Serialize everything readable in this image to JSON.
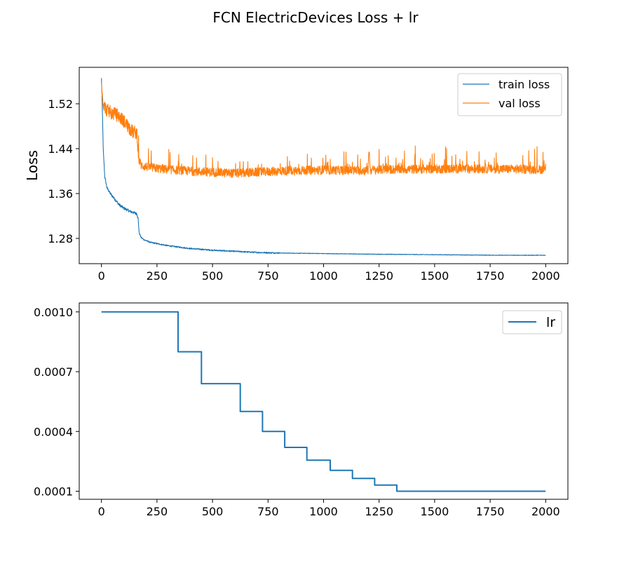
{
  "title": "FCN ElectricDevices Loss + lr",
  "colors": {
    "train": "#1f77b4",
    "val": "#ff7f0e",
    "lr": "#1f77b4"
  },
  "chart_data": [
    {
      "type": "line",
      "ylabel": "Loss",
      "xlim": [
        -100,
        2100
      ],
      "ylim": [
        1.235,
        1.585
      ],
      "xticks": [
        0,
        250,
        500,
        750,
        1000,
        1250,
        1500,
        1750,
        2000
      ],
      "xtick_labels": [
        "0",
        "250",
        "500",
        "750",
        "1000",
        "1250",
        "1500",
        "1750",
        "2000"
      ],
      "yticks": [
        1.28,
        1.36,
        1.44,
        1.52
      ],
      "ytick_labels": [
        "1.28",
        "1.36",
        "1.44",
        "1.52"
      ],
      "legend_position": "top-right",
      "series": [
        {
          "name": "train loss",
          "x": [
            0,
            3,
            8,
            15,
            25,
            40,
            60,
            80,
            100,
            130,
            160,
            165,
            170,
            178,
            190,
            220,
            260,
            300,
            400,
            500,
            600,
            700,
            800,
            1000,
            1200,
            1500,
            1800,
            2000
          ],
          "y": [
            1.565,
            1.53,
            1.44,
            1.39,
            1.37,
            1.36,
            1.35,
            1.34,
            1.334,
            1.328,
            1.324,
            1.315,
            1.29,
            1.282,
            1.278,
            1.273,
            1.27,
            1.267,
            1.262,
            1.259,
            1.257,
            1.255,
            1.254,
            1.253,
            1.252,
            1.251,
            1.25,
            1.25
          ]
        },
        {
          "name": "val loss",
          "x": [
            0,
            5,
            10,
            20,
            40,
            70,
            100,
            140,
            160,
            168,
            175,
            180,
            200,
            250,
            300,
            400,
            500,
            600,
            700,
            800,
            1000,
            1200,
            1205,
            1210,
            1300,
            1500,
            1750,
            2000
          ],
          "y": [
            1.565,
            1.53,
            1.52,
            1.51,
            1.505,
            1.5,
            1.49,
            1.47,
            1.468,
            1.42,
            1.415,
            1.41,
            1.408,
            1.405,
            1.403,
            1.4,
            1.398,
            1.396,
            1.398,
            1.4,
            1.402,
            1.401,
            1.44,
            1.402,
            1.403,
            1.404,
            1.404,
            1.403
          ]
        }
      ]
    },
    {
      "type": "line",
      "ylabel": "",
      "xlim": [
        -100,
        2100
      ],
      "ylim": [
        5.95e-05,
        0.001045
      ],
      "xticks": [
        0,
        250,
        500,
        750,
        1000,
        1250,
        1500,
        1750,
        2000
      ],
      "xtick_labels": [
        "0",
        "250",
        "500",
        "750",
        "1000",
        "1250",
        "1500",
        "1750",
        "2000"
      ],
      "yticks": [
        0.0001,
        0.0004,
        0.0007,
        0.001
      ],
      "ytick_labels": [
        "0.0001",
        "0.0004",
        "0.0007",
        "0.0010"
      ],
      "legend_position": "top-right",
      "series": [
        {
          "name": "lr",
          "step": true,
          "x": [
            0,
            345,
            450,
            625,
            725,
            825,
            925,
            1030,
            1130,
            1230,
            1330,
            2000
          ],
          "y": [
            0.001,
            0.0008,
            0.00064,
            0.0005,
            0.0004,
            0.00032,
            0.000256,
            0.000205,
            0.000164,
            0.000131,
            0.0001,
            0.0001
          ]
        }
      ]
    }
  ]
}
